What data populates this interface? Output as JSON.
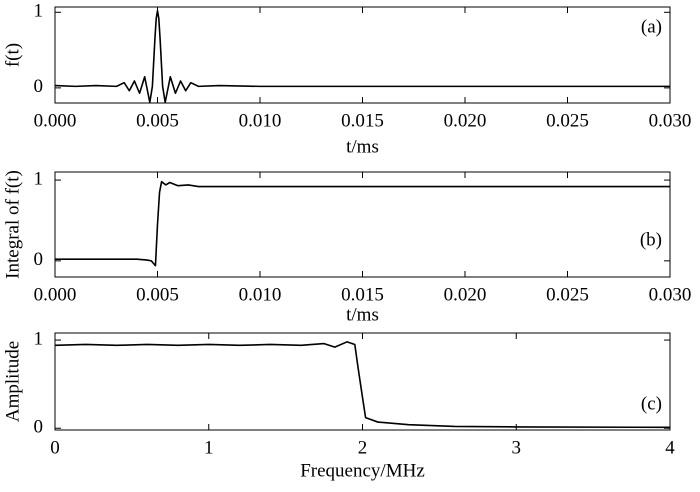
{
  "chart_data": [
    {
      "type": "line",
      "ylabel": "f(t)",
      "xlabel": "t/ms",
      "annotation": "(a)",
      "color": "#000000",
      "xlim": [
        0,
        0.03
      ],
      "ylim": [
        -0.2,
        1.07
      ],
      "xticks": [
        {
          "value": 0,
          "label": "0.000"
        },
        {
          "value": 0.005,
          "label": "0.005"
        },
        {
          "value": 0.01,
          "label": "0.010"
        },
        {
          "value": 0.015,
          "label": "0.015"
        },
        {
          "value": 0.02,
          "label": "0.020"
        },
        {
          "value": 0.025,
          "label": "0.025"
        },
        {
          "value": 0.03,
          "label": "0.030"
        }
      ],
      "yticks": [
        0,
        1
      ],
      "x": [
        0,
        0.001,
        0.002,
        0.003,
        0.003375,
        0.003625,
        0.003875,
        0.004125,
        0.004375,
        0.004625,
        0.00475,
        0.004875,
        0.0049375,
        0.005,
        0.0050625,
        0.005125,
        0.00525,
        0.005375,
        0.005625,
        0.005875,
        0.006125,
        0.006375,
        0.006625,
        0.007,
        0.008,
        0.01,
        0.015,
        0.02,
        0.025,
        0.03
      ],
      "values": [
        0.03,
        0.02,
        0.03,
        0.02,
        0.069,
        -0.038,
        0.091,
        -0.071,
        0.147,
        -0.192,
        0.02,
        0.657,
        0.92,
        1.02,
        0.92,
        0.657,
        0.02,
        -0.192,
        0.147,
        -0.071,
        0.091,
        -0.038,
        0.069,
        0.02,
        0.03,
        0.02,
        0.02,
        0.02,
        0.02,
        0.02
      ]
    },
    {
      "type": "line",
      "ylabel": "Integral of f(t)",
      "xlabel": "t/ms",
      "annotation": "(b)",
      "color": "#000000",
      "xlim": [
        0,
        0.03
      ],
      "ylim": [
        -0.2,
        1.1
      ],
      "xticks": [
        {
          "value": 0,
          "label": "0.000"
        },
        {
          "value": 0.005,
          "label": "0.005"
        },
        {
          "value": 0.01,
          "label": "0.010"
        },
        {
          "value": 0.015,
          "label": "0.015"
        },
        {
          "value": 0.02,
          "label": "0.020"
        },
        {
          "value": 0.025,
          "label": "0.025"
        },
        {
          "value": 0.03,
          "label": "0.030"
        }
      ],
      "yticks": [
        0,
        1
      ],
      "x": [
        0,
        0.002,
        0.004,
        0.0045,
        0.0047,
        0.0049,
        0.005,
        0.0051,
        0.0052,
        0.0054,
        0.0056,
        0.006,
        0.0065,
        0.007,
        0.01,
        0.03
      ],
      "values": [
        0.02,
        0.02,
        0.02,
        0.01,
        0.0,
        -0.06,
        0.45,
        0.85,
        0.98,
        0.94,
        0.97,
        0.93,
        0.94,
        0.92,
        0.92,
        0.92
      ]
    },
    {
      "type": "line",
      "ylabel": "Amplitude",
      "xlabel": "Frequency/MHz",
      "annotation": "(c)",
      "color": "#000000",
      "xlim": [
        0,
        4
      ],
      "ylim": [
        -0.02,
        1.08
      ],
      "xticks": [
        0,
        1,
        2,
        3,
        4
      ],
      "yticks": [
        0,
        1
      ],
      "x": [
        0,
        0.2,
        0.4,
        0.6,
        0.8,
        1.0,
        1.2,
        1.4,
        1.6,
        1.75,
        1.82,
        1.9,
        1.95,
        1.97,
        2.0,
        2.02,
        2.1,
        2.3,
        2.6,
        3,
        4
      ],
      "values": [
        0.94,
        0.95,
        0.94,
        0.95,
        0.94,
        0.95,
        0.94,
        0.95,
        0.94,
        0.96,
        0.92,
        0.98,
        0.95,
        0.7,
        0.35,
        0.12,
        0.07,
        0.04,
        0.02,
        0.015,
        0.01
      ]
    }
  ]
}
